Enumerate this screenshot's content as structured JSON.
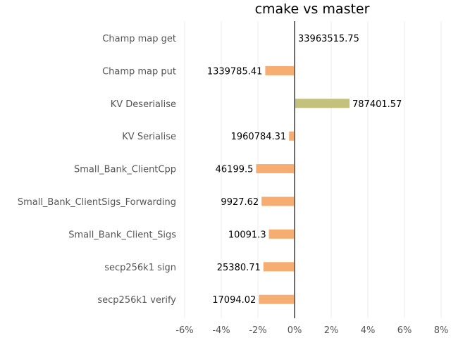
{
  "chart_data": {
    "type": "bar",
    "orientation": "horizontal",
    "title": "cmake vs master",
    "xlabel": "",
    "ylabel": "",
    "xlim": [
      -6,
      8
    ],
    "x_ticks": [
      -6,
      -4,
      -2,
      0,
      2,
      4,
      6,
      8
    ],
    "x_tick_labels": [
      "-6%",
      "-4%",
      "-2%",
      "0%",
      "2%",
      "4%",
      "6%",
      "8%"
    ],
    "grid": true,
    "categories": [
      "Champ map get",
      "Champ map put",
      "KV Deserialise",
      "KV Serialise",
      "Small_Bank_ClientCpp",
      "Small_Bank_ClientSigs_Forwarding",
      "Small_Bank_Client_Sigs",
      "secp256k1 sign",
      "secp256k1 verify"
    ],
    "values": [
      0.0,
      -1.6,
      3.0,
      -0.3,
      -2.1,
      -1.8,
      -1.4,
      -1.7,
      -1.95
    ],
    "value_labels": [
      "33963515.75",
      "1339785.41",
      "787401.57",
      "1960784.31",
      "46199.5",
      "9927.62",
      "10091.3",
      "25380.71",
      "17094.02"
    ],
    "colors": {
      "negative": "#f5ad72",
      "positive": "#c3c17b",
      "zero_line": "#6e6e6e",
      "grid": "#eeeeee"
    }
  }
}
